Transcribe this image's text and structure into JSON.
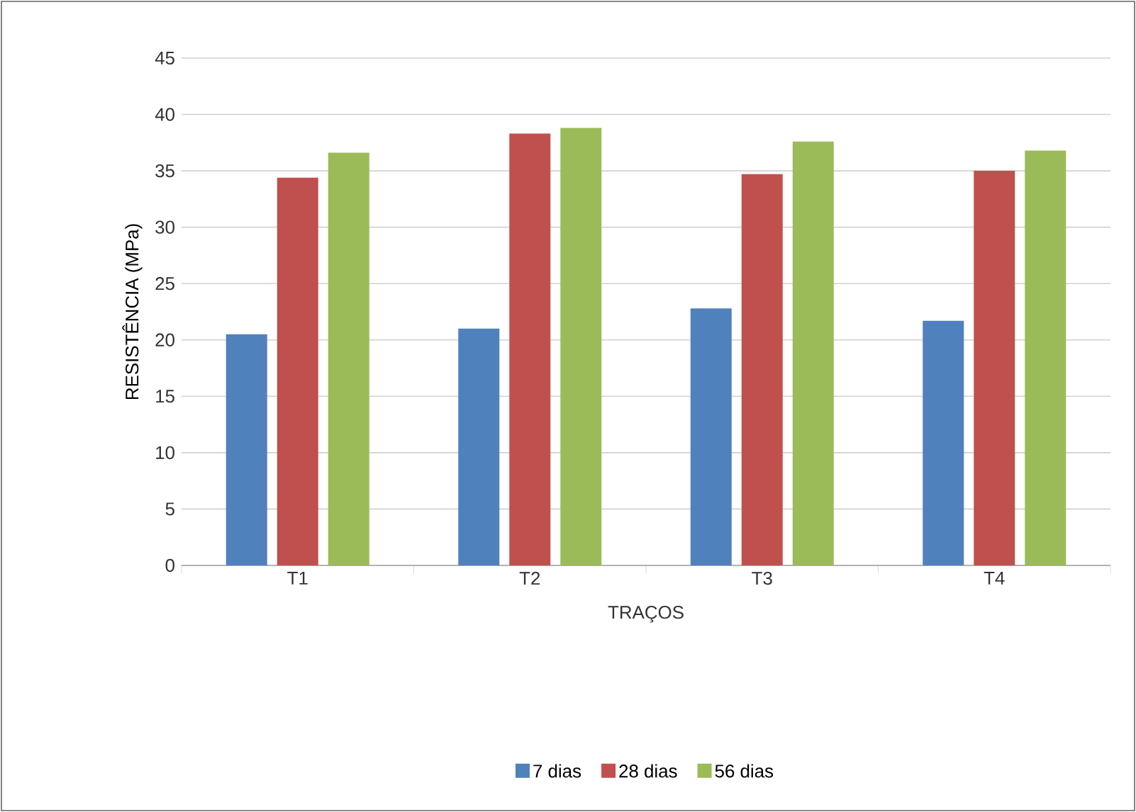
{
  "chart_data": {
    "type": "bar",
    "xlabel": "TRAÇOS",
    "ylabel": "RESISTÊNCIA (MPa)",
    "categories": [
      "T1",
      "T2",
      "T3",
      "T4"
    ],
    "series": [
      {
        "name": "7 dias",
        "color": "#4f81bd",
        "values": [
          20.5,
          21.0,
          22.8,
          21.7
        ]
      },
      {
        "name": "28 dias",
        "color": "#c0504d",
        "values": [
          34.4,
          38.3,
          34.7,
          35.0
        ]
      },
      {
        "name": "56 dias",
        "color": "#9bbb59",
        "values": [
          36.6,
          38.8,
          37.6,
          36.8
        ]
      }
    ],
    "ylim": [
      0,
      45
    ],
    "yticks": [
      0,
      5,
      10,
      15,
      20,
      25,
      30,
      35,
      40,
      45
    ],
    "grid": "y",
    "legend": "bottom"
  }
}
